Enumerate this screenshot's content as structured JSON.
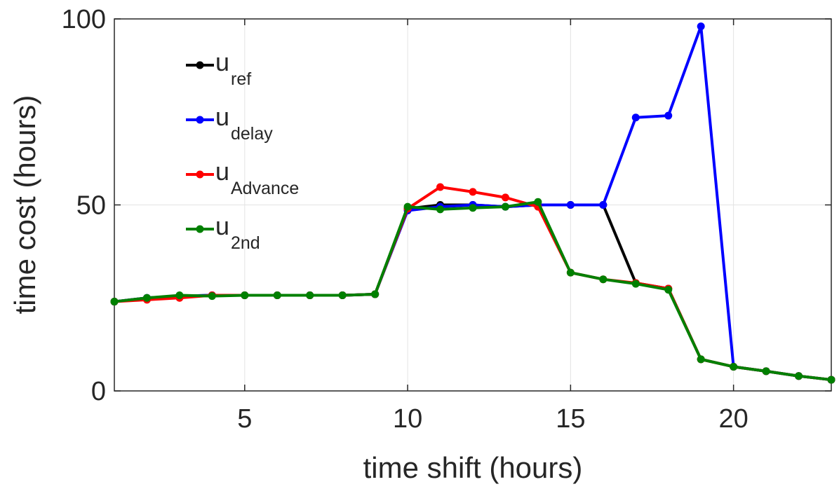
{
  "chart_data": {
    "type": "line",
    "xlabel": "time shift (hours)",
    "ylabel": "time cost (hours)",
    "xlim": [
      1,
      23
    ],
    "ylim": [
      0,
      100
    ],
    "xticks": [
      5,
      10,
      15,
      20
    ],
    "yticks": [
      0,
      50,
      100
    ],
    "grid": true,
    "legend_position": "top-left",
    "x": [
      1,
      2,
      3,
      4,
      5,
      6,
      7,
      8,
      9,
      10,
      11,
      12,
      13,
      14,
      15,
      16,
      17,
      18,
      19,
      20,
      21,
      22,
      23
    ],
    "series": [
      {
        "name": "u",
        "subscript": "ref",
        "color": "#000000",
        "values": [
          24,
          25,
          25.5,
          25.7,
          25.7,
          25.7,
          25.7,
          25.7,
          26,
          49,
          50,
          50,
          49.5,
          50,
          50,
          50,
          29,
          27.5,
          8.5,
          6.5,
          5.3,
          4,
          3
        ]
      },
      {
        "name": "u",
        "subscript": "delay",
        "color": "#0000ff",
        "values": [
          24,
          25,
          25.5,
          25.7,
          25.7,
          25.7,
          25.7,
          25.7,
          26,
          48.5,
          49.5,
          50,
          49.5,
          50,
          50,
          50,
          73.5,
          74,
          98,
          6.5,
          5.3,
          4,
          3
        ]
      },
      {
        "name": "u",
        "subscript": "Advance",
        "color": "#ff0000",
        "values": [
          24,
          24.5,
          25,
          25.7,
          25.7,
          25.7,
          25.7,
          25.7,
          26,
          49,
          54.8,
          53.5,
          52,
          49.5,
          31.8,
          30,
          29,
          27.5,
          8.5,
          6.5,
          5.3,
          4,
          3
        ]
      },
      {
        "name": "u",
        "subscript": "2nd",
        "color": "#008000",
        "values": [
          24,
          25,
          25.7,
          25.5,
          25.7,
          25.7,
          25.7,
          25.7,
          26,
          49.5,
          48.8,
          49.2,
          49.5,
          50.8,
          31.8,
          30,
          28.8,
          27.2,
          8.5,
          6.5,
          5.3,
          4,
          3
        ]
      }
    ]
  }
}
